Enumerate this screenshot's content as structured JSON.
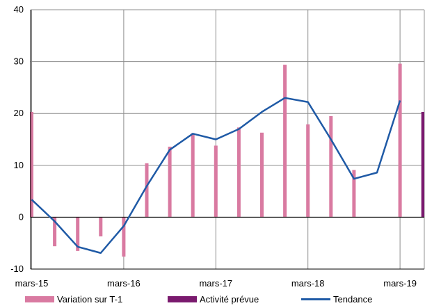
{
  "chart_data": {
    "type": "bar",
    "title": "",
    "xlabel": "",
    "ylabel": "",
    "ylim": [
      -10,
      40
    ],
    "yticks": [
      -10,
      0,
      10,
      20,
      30,
      40
    ],
    "x_ticks": [
      "mars-15",
      "mars-16",
      "mars-17",
      "mars-18",
      "mars-19"
    ],
    "grid": true,
    "legend_position": "bottom",
    "x": [
      "2015-03",
      "2015-06",
      "2015-09",
      "2015-12",
      "2016-03",
      "2016-06",
      "2016-09",
      "2016-12",
      "2017-03",
      "2017-06",
      "2017-09",
      "2017-12",
      "2018-03",
      "2018-06",
      "2018-09",
      "2018-12",
      "2019-03",
      "2019-06"
    ],
    "series": [
      {
        "name": "Variation sur T-1",
        "type": "bar",
        "color": "#d97aa1",
        "values": [
          20.3,
          -5.6,
          -6.5,
          -3.7,
          -7.6,
          10.4,
          13.6,
          16.2,
          13.8,
          17.3,
          16.3,
          29.4,
          17.9,
          19.5,
          9.1,
          null,
          29.6,
          null
        ]
      },
      {
        "name": "Activité prévue",
        "type": "bar",
        "color": "#7a1a6e",
        "values": [
          null,
          null,
          null,
          null,
          null,
          null,
          null,
          null,
          null,
          null,
          null,
          null,
          null,
          null,
          null,
          null,
          null,
          20.3
        ]
      },
      {
        "name": "Tendance",
        "type": "line",
        "color": "#1f5aa6",
        "values": [
          3.4,
          -0.8,
          -5.7,
          -6.9,
          -1.7,
          6.0,
          13.0,
          16.1,
          15.0,
          17.0,
          20.3,
          23.0,
          22.2,
          15.0,
          7.4,
          8.6,
          22.5,
          null
        ]
      }
    ]
  }
}
